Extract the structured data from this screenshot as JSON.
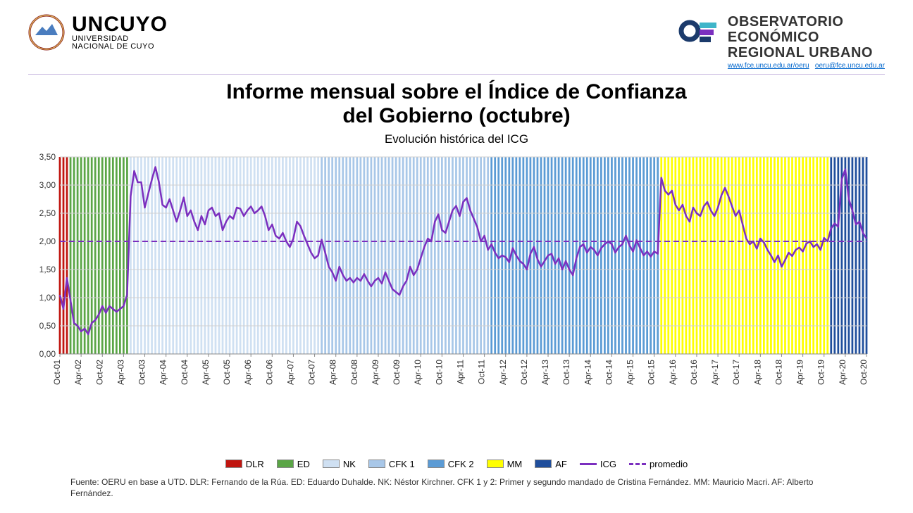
{
  "header": {
    "uncuyo_big": "UNCUYO",
    "uncuyo_small1": "UNIVERSIDAD",
    "uncuyo_small2": "NACIONAL DE CUYO",
    "oeru_line1": "OBSERVATORIO",
    "oeru_line2": "ECONÓMICO",
    "oeru_line3": "REGIONAL URBANO",
    "oeru_link1": "www.fce.uncu.edu.ar/oeru",
    "oeru_link2": "oeru@fce.uncu.edu.ar"
  },
  "title": {
    "line1": "Informe mensual sobre el Índice de Confianza",
    "line2": "del Gobierno (octubre)",
    "subtitle": "Evolución histórica del ICG"
  },
  "source": "Fuente: OERU en base a UTD. DLR: Fernando de la Rúa. ED: Eduardo Duhalde. NK: Néstor Kirchner. CFK 1 y 2: Primer y segundo mandado de Cristina Fernández. MM: Mauricio Macri. AF: Alberto Fernández.",
  "chart": {
    "type": "line-with-period-bars",
    "ylim": [
      0,
      3.5
    ],
    "ytick_step": 0.5,
    "ytick_labels": [
      "0,00",
      "0,50",
      "1,00",
      "1,50",
      "2,00",
      "2,50",
      "3,00",
      "3,50"
    ],
    "x_labels": [
      "Oct-01",
      "Apr-02",
      "Oct-02",
      "Apr-03",
      "Oct-03",
      "Apr-04",
      "Oct-04",
      "Apr-05",
      "Oct-05",
      "Apr-06",
      "Oct-06",
      "Apr-07",
      "Oct-07",
      "Apr-08",
      "Oct-08",
      "Apr-09",
      "Oct-09",
      "Apr-10",
      "Oct-10",
      "Apr-11",
      "Oct-11",
      "Apr-12",
      "Oct-12",
      "Apr-13",
      "Oct-13",
      "Apr-14",
      "Oct-14",
      "Apr-15",
      "Oct-15",
      "Apr-16",
      "Oct-16",
      "Apr-17",
      "Oct-17",
      "Apr-18",
      "Oct-18",
      "Apr-19",
      "Oct-19",
      "Apr-20",
      "Oct-20"
    ],
    "n_months": 229,
    "promedio": 2.0,
    "promedio_color": "#7b2fbf",
    "line_color": "#7b2fbf",
    "line_width": 2.5,
    "background": "#ffffff",
    "grid_color": "#d0d0d0",
    "axis_font_size": 12,
    "periods": [
      {
        "code": "DLR",
        "label": "DLR",
        "start": 0,
        "end": 2,
        "color": "#c0150f"
      },
      {
        "code": "ED",
        "label": "ED",
        "start": 3,
        "end": 19,
        "color": "#5aa546"
      },
      {
        "code": "NK",
        "label": "NK",
        "start": 20,
        "end": 73,
        "color": "#cfe0f2"
      },
      {
        "code": "CFK1",
        "label": "CFK 1",
        "start": 74,
        "end": 121,
        "color": "#a8c7e8"
      },
      {
        "code": "CFK2",
        "label": "CFK 2",
        "start": 122,
        "end": 169,
        "color": "#5b9bd5"
      },
      {
        "code": "MM",
        "label": "MM",
        "start": 170,
        "end": 217,
        "color": "#ffff00"
      },
      {
        "code": "AF",
        "label": "AF",
        "start": 218,
        "end": 228,
        "color": "#1f4e9c"
      }
    ],
    "icg_values": [
      1.05,
      0.8,
      1.35,
      0.95,
      0.55,
      0.5,
      0.4,
      0.45,
      0.35,
      0.55,
      0.6,
      0.7,
      0.85,
      0.73,
      0.85,
      0.8,
      0.75,
      0.8,
      0.85,
      1.05,
      2.8,
      3.25,
      3.05,
      3.05,
      2.6,
      2.85,
      3.1,
      3.32,
      3.05,
      2.65,
      2.6,
      2.75,
      2.55,
      2.35,
      2.55,
      2.78,
      2.45,
      2.55,
      2.35,
      2.2,
      2.45,
      2.3,
      2.55,
      2.6,
      2.45,
      2.5,
      2.2,
      2.35,
      2.45,
      2.4,
      2.6,
      2.58,
      2.45,
      2.55,
      2.62,
      2.5,
      2.55,
      2.62,
      2.45,
      2.2,
      2.3,
      2.1,
      2.05,
      2.15,
      2.0,
      1.9,
      2.05,
      2.35,
      2.27,
      2.1,
      1.95,
      1.8,
      1.7,
      1.75,
      2.03,
      1.8,
      1.55,
      1.45,
      1.3,
      1.55,
      1.4,
      1.3,
      1.35,
      1.27,
      1.35,
      1.3,
      1.42,
      1.3,
      1.2,
      1.3,
      1.35,
      1.25,
      1.45,
      1.3,
      1.15,
      1.1,
      1.05,
      1.2,
      1.3,
      1.55,
      1.4,
      1.5,
      1.7,
      1.9,
      2.05,
      2.0,
      2.35,
      2.48,
      2.2,
      2.15,
      2.35,
      2.55,
      2.63,
      2.45,
      2.7,
      2.77,
      2.55,
      2.4,
      2.25,
      2.0,
      2.1,
      1.85,
      1.95,
      1.8,
      1.7,
      1.75,
      1.72,
      1.63,
      1.88,
      1.75,
      1.65,
      1.6,
      1.5,
      1.78,
      1.9,
      1.68,
      1.55,
      1.65,
      1.75,
      1.78,
      1.6,
      1.7,
      1.5,
      1.65,
      1.5,
      1.4,
      1.7,
      1.9,
      1.95,
      1.8,
      1.9,
      1.85,
      1.75,
      1.88,
      1.95,
      2.0,
      1.95,
      1.8,
      1.9,
      1.95,
      2.1,
      1.93,
      1.82,
      2.02,
      1.88,
      1.75,
      1.82,
      1.73,
      1.82,
      1.78,
      3.13,
      2.9,
      2.83,
      2.9,
      2.65,
      2.55,
      2.65,
      2.45,
      2.35,
      2.6,
      2.5,
      2.45,
      2.62,
      2.7,
      2.55,
      2.45,
      2.6,
      2.82,
      2.95,
      2.8,
      2.62,
      2.45,
      2.55,
      2.3,
      2.05,
      1.95,
      2.0,
      1.87,
      2.05,
      1.98,
      1.85,
      1.75,
      1.63,
      1.75,
      1.55,
      1.67,
      1.8,
      1.74,
      1.85,
      1.89,
      1.82,
      1.96,
      2.0,
      1.9,
      1.95,
      1.85,
      2.06,
      2.0,
      2.23,
      2.32,
      2.26,
      3.1,
      3.28,
      2.75,
      2.55,
      2.3,
      2.35,
      2.15,
      2.05
    ]
  },
  "legend": {
    "items": [
      {
        "label": "DLR",
        "type": "box",
        "color": "#c0150f"
      },
      {
        "label": "ED",
        "type": "box",
        "color": "#5aa546"
      },
      {
        "label": "NK",
        "type": "box",
        "color": "#cfe0f2"
      },
      {
        "label": "CFK 1",
        "type": "box",
        "color": "#a8c7e8"
      },
      {
        "label": "CFK 2",
        "type": "box",
        "color": "#5b9bd5"
      },
      {
        "label": "MM",
        "type": "box",
        "color": "#ffff00"
      },
      {
        "label": "AF",
        "type": "box",
        "color": "#1f4e9c"
      },
      {
        "label": "ICG",
        "type": "line",
        "color": "#7b2fbf"
      },
      {
        "label": "promedio",
        "type": "dash",
        "color": "#7b2fbf"
      }
    ]
  }
}
